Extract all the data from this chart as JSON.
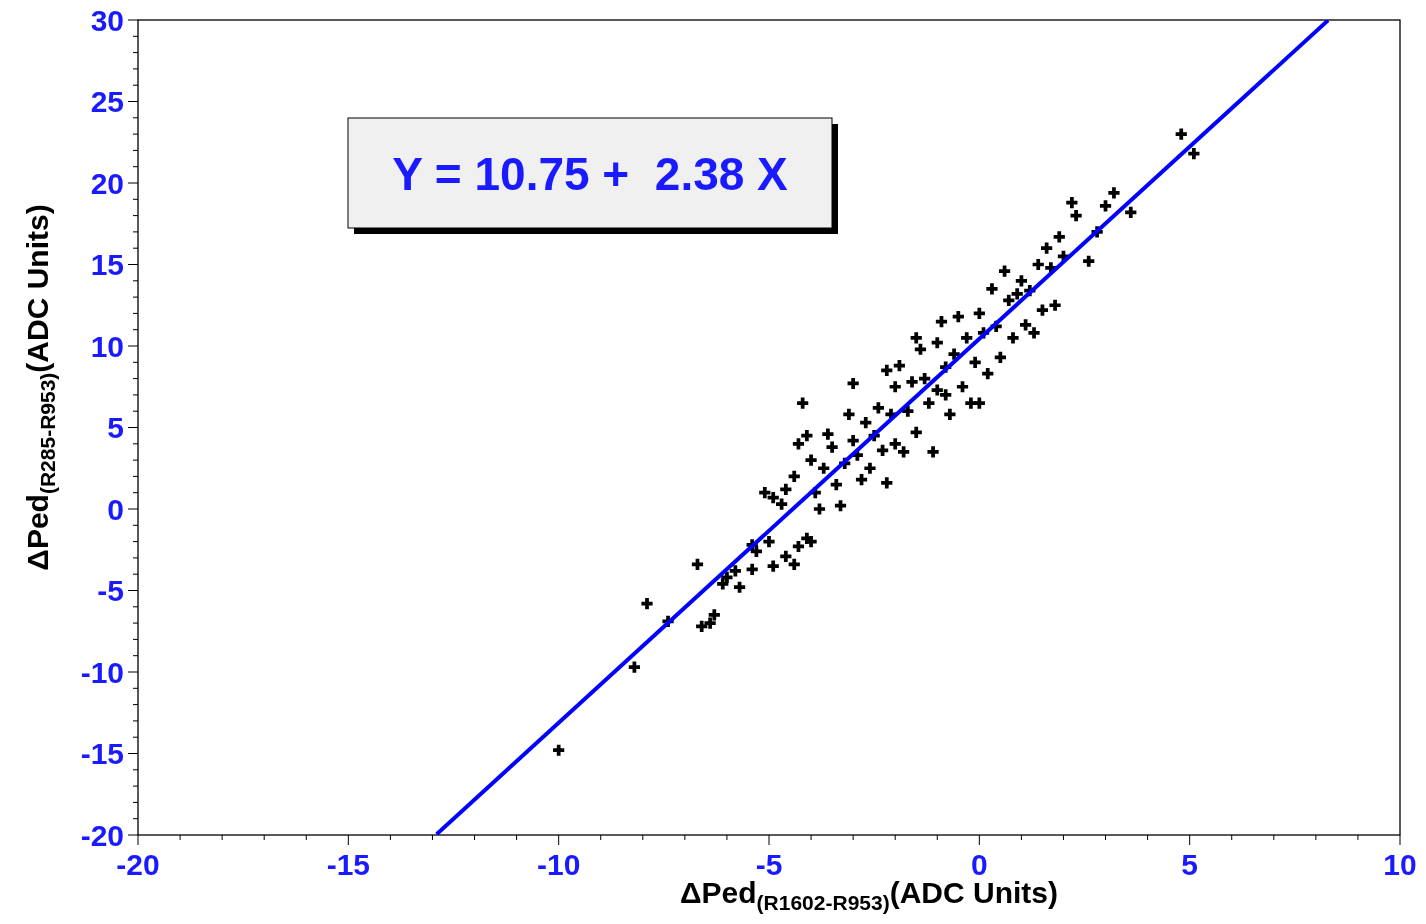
{
  "chart_data": {
    "type": "scatter",
    "xlabel": "ΔPed$_{(R1602-R953)}$(ADC Units)",
    "ylabel": "ΔPed$_{(R285-R953)}$(ADC Units)",
    "annotations": [
      "Y = 10.75 +  2.38 X"
    ],
    "xlim": [
      -20,
      10
    ],
    "ylim": [
      -20,
      30
    ],
    "xticks": [
      -20,
      {
        "value": -19,
        "label": null
      },
      {
        "value": -18,
        "label": null
      },
      {
        "value": -17,
        "label": null
      },
      {
        "value": -16,
        "label": null
      },
      -15,
      {
        "value": -14,
        "label": null
      },
      {
        "value": -13,
        "label": null
      },
      {
        "value": -12,
        "label": null
      },
      {
        "value": -11,
        "label": null
      },
      -10,
      {
        "value": -9,
        "label": null
      },
      {
        "value": -8,
        "label": null
      },
      {
        "value": -7,
        "label": null
      },
      {
        "value": -6,
        "label": null
      },
      -5,
      {
        "value": -4,
        "label": null
      },
      {
        "value": -3,
        "label": null
      },
      {
        "value": -2,
        "label": null
      },
      {
        "value": -1,
        "label": null
      },
      0,
      {
        "value": 1,
        "label": null
      },
      {
        "value": 2,
        "label": null
      },
      {
        "value": 3,
        "label": null
      },
      {
        "value": 4,
        "label": null
      },
      5,
      {
        "value": 6,
        "label": null
      },
      {
        "value": 7,
        "label": null
      },
      {
        "value": 8,
        "label": null
      },
      {
        "value": 9,
        "label": null
      },
      10
    ],
    "yticks": [
      -20,
      {
        "value": -19,
        "label": null
      },
      {
        "value": -18,
        "label": null
      },
      {
        "value": -17,
        "label": null
      },
      {
        "value": -16,
        "label": null
      },
      -15,
      {
        "value": -14,
        "label": null
      },
      {
        "value": -13,
        "label": null
      },
      {
        "value": -12,
        "label": null
      },
      {
        "value": -11,
        "label": null
      },
      -10,
      {
        "value": -9,
        "label": null
      },
      {
        "value": -8,
        "label": null
      },
      {
        "value": -7,
        "label": null
      },
      {
        "value": -6,
        "label": null
      },
      -5,
      {
        "value": -4,
        "label": null
      },
      {
        "value": -3,
        "label": null
      },
      {
        "value": -2,
        "label": null
      },
      {
        "value": -1,
        "label": null
      },
      0,
      {
        "value": 1,
        "label": null
      },
      {
        "value": 2,
        "label": null
      },
      {
        "value": 3,
        "label": null
      },
      {
        "value": 4,
        "label": null
      },
      5,
      {
        "value": 6,
        "label": null
      },
      {
        "value": 7,
        "label": null
      },
      {
        "value": 8,
        "label": null
      },
      {
        "value": 9,
        "label": null
      },
      10,
      {
        "value": 11,
        "label": null
      },
      {
        "value": 12,
        "label": null
      },
      {
        "value": 13,
        "label": null
      },
      {
        "value": 14,
        "label": null
      },
      15,
      {
        "value": 16,
        "label": null
      },
      {
        "value": 17,
        "label": null
      },
      {
        "value": 18,
        "label": null
      },
      {
        "value": 19,
        "label": null
      },
      20,
      {
        "value": 21,
        "label": null
      },
      {
        "value": 22,
        "label": null
      },
      {
        "value": 23,
        "label": null
      },
      {
        "value": 24,
        "label": null
      },
      25,
      {
        "value": 26,
        "label": null
      },
      {
        "value": 27,
        "label": null
      },
      {
        "value": 28,
        "label": null
      },
      {
        "value": 29,
        "label": null
      },
      30
    ],
    "series": [
      {
        "type": "scatter",
        "color": "#000000",
        "marker": "cross",
        "x": [
          -10,
          -8.2,
          -7.9,
          -7.4,
          -6.7,
          -6.6,
          -6.4,
          -6.3,
          -6.1,
          -6.0,
          -5.8,
          -5.7,
          -5.4,
          -5.4,
          -5.3,
          -5.0,
          -4.9,
          -4.6,
          -4.4,
          -4.3,
          -4.1,
          -4.0,
          -5.1,
          -4.9,
          -4.7,
          -4.6,
          -4.4,
          -4.3,
          -4.2,
          -4.1,
          -4.0,
          -3.9,
          -3.8,
          -3.7,
          -3.6,
          -3.5,
          -3.4,
          -3.3,
          -3.2,
          -3.1,
          -3.0,
          -3.0,
          -2.9,
          -2.8,
          -2.7,
          -2.6,
          -2.5,
          -2.4,
          -2.3,
          -2.2,
          -2.1,
          -2.0,
          -2.0,
          -1.9,
          -1.8,
          -1.7,
          -1.6,
          -1.5,
          -1.4,
          -1.3,
          -1.2,
          -1.1,
          -1.0,
          -1.0,
          -0.9,
          -0.8,
          -0.7,
          -0.6,
          -0.5,
          -0.4,
          -0.3,
          -0.2,
          -0.1,
          0.0,
          0.0,
          0.1,
          0.2,
          0.3,
          0.4,
          0.5,
          0.6,
          0.7,
          0.8,
          0.9,
          1.0,
          1.1,
          1.2,
          1.3,
          1.4,
          1.5,
          1.6,
          1.7,
          1.8,
          1.9,
          2.0,
          2.2,
          2.3,
          2.6,
          2.8,
          3.0,
          3.2,
          3.6,
          4.8,
          5.1,
          -1.5,
          -2.2,
          -0.8
        ],
        "values": [
          -14.8,
          -9.7,
          -5.8,
          -6.9,
          -3.4,
          -7.2,
          -7.0,
          -6.5,
          -4.6,
          -4.2,
          -3.8,
          -4.8,
          -3.7,
          -2.2,
          -2.6,
          -2.0,
          -3.5,
          -2.9,
          -3.4,
          -2.3,
          -1.8,
          -2.0,
          1.0,
          0.7,
          0.3,
          1.2,
          2.0,
          4.0,
          6.5,
          4.5,
          3.0,
          1.0,
          0.0,
          2.5,
          4.6,
          3.8,
          1.5,
          0.2,
          2.8,
          5.8,
          7.7,
          4.2,
          3.3,
          1.8,
          5.3,
          2.5,
          4.5,
          6.2,
          3.6,
          1.6,
          5.8,
          7.5,
          4.0,
          8.8,
          3.5,
          6.0,
          7.8,
          4.7,
          9.8,
          8.0,
          6.5,
          3.5,
          10.2,
          7.3,
          11.5,
          8.7,
          5.8,
          9.5,
          11.8,
          7.5,
          10.5,
          6.5,
          9.0,
          12.0,
          6.5,
          10.8,
          8.3,
          13.5,
          11.2,
          9.3,
          14.6,
          12.8,
          10.5,
          13.2,
          14.0,
          11.3,
          13.4,
          10.8,
          15.0,
          12.2,
          16.0,
          14.8,
          12.5,
          16.7,
          15.5,
          18.8,
          18.0,
          15.2,
          17.0,
          18.6,
          19.4,
          18.2,
          23.0,
          21.8,
          10.5,
          8.5,
          7.0
        ]
      },
      {
        "type": "line",
        "color": "#0000ff",
        "marker": "none",
        "x": [
          -12.9,
          8.29
        ],
        "values": [
          -19.95,
          29.98
        ]
      }
    ]
  }
}
